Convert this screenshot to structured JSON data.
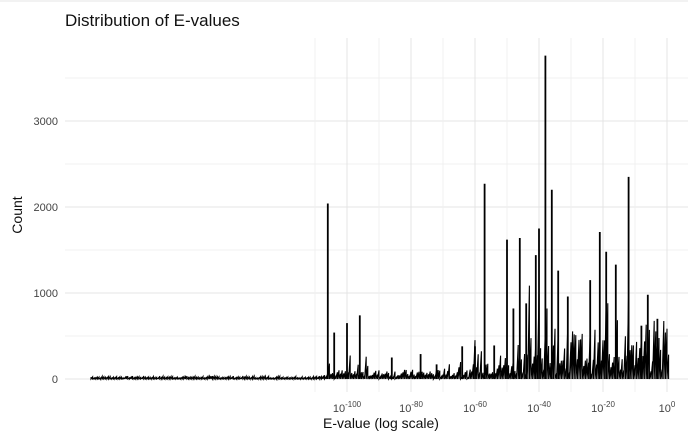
{
  "chart_data": {
    "type": "line",
    "title": "Distribution of E-values",
    "xlabel": "E-value (log scale)",
    "ylabel": "Count",
    "x_scale": "log10",
    "xlim": [
      "1e-180",
      "1e5"
    ],
    "ylim": [
      0,
      3800
    ],
    "grid": true,
    "legend": "none",
    "x_ticks": [
      {
        "base": "10",
        "exp": "-100"
      },
      {
        "base": "10",
        "exp": "-80"
      },
      {
        "base": "10",
        "exp": "-60"
      },
      {
        "base": "10",
        "exp": "-40"
      },
      {
        "base": "10",
        "exp": "-20"
      },
      {
        "base": "10",
        "exp": "0"
      }
    ],
    "y_ticks": [
      "0",
      "1000",
      "2000",
      "3000"
    ],
    "peaks": [
      {
        "x": "1e-106",
        "y": 2040
      },
      {
        "x": "1e-104",
        "y": 540
      },
      {
        "x": "1e-100",
        "y": 650
      },
      {
        "x": "1e-96",
        "y": 740
      },
      {
        "x": "1e-86",
        "y": 250
      },
      {
        "x": "1e-77",
        "y": 290
      },
      {
        "x": "1e-72",
        "y": 170
      },
      {
        "x": "1e-64",
        "y": 380
      },
      {
        "x": "1e-60",
        "y": 380
      },
      {
        "x": "1e-57",
        "y": 2270
      },
      {
        "x": "1e-54",
        "y": 390
      },
      {
        "x": "1e-50",
        "y": 1620
      },
      {
        "x": "1e-48",
        "y": 820
      },
      {
        "x": "1e-46",
        "y": 1640
      },
      {
        "x": "1e-44",
        "y": 880
      },
      {
        "x": "1e-41",
        "y": 1440
      },
      {
        "x": "1e-40",
        "y": 1750
      },
      {
        "x": "1e-38",
        "y": 3760
      },
      {
        "x": "1e-36",
        "y": 2200
      },
      {
        "x": "1e-34",
        "y": 1260
      },
      {
        "x": "1e-31",
        "y": 960
      },
      {
        "x": "1e-24",
        "y": 1150
      },
      {
        "x": "1e-21",
        "y": 1710
      },
      {
        "x": "1e-19",
        "y": 1480
      },
      {
        "x": "1e-16",
        "y": 1330
      },
      {
        "x": "1e-12",
        "y": 2350
      },
      {
        "x": "1e-8",
        "y": 620
      },
      {
        "x": "1e-6",
        "y": 980
      },
      {
        "x": "1e-3",
        "y": 700
      }
    ]
  }
}
